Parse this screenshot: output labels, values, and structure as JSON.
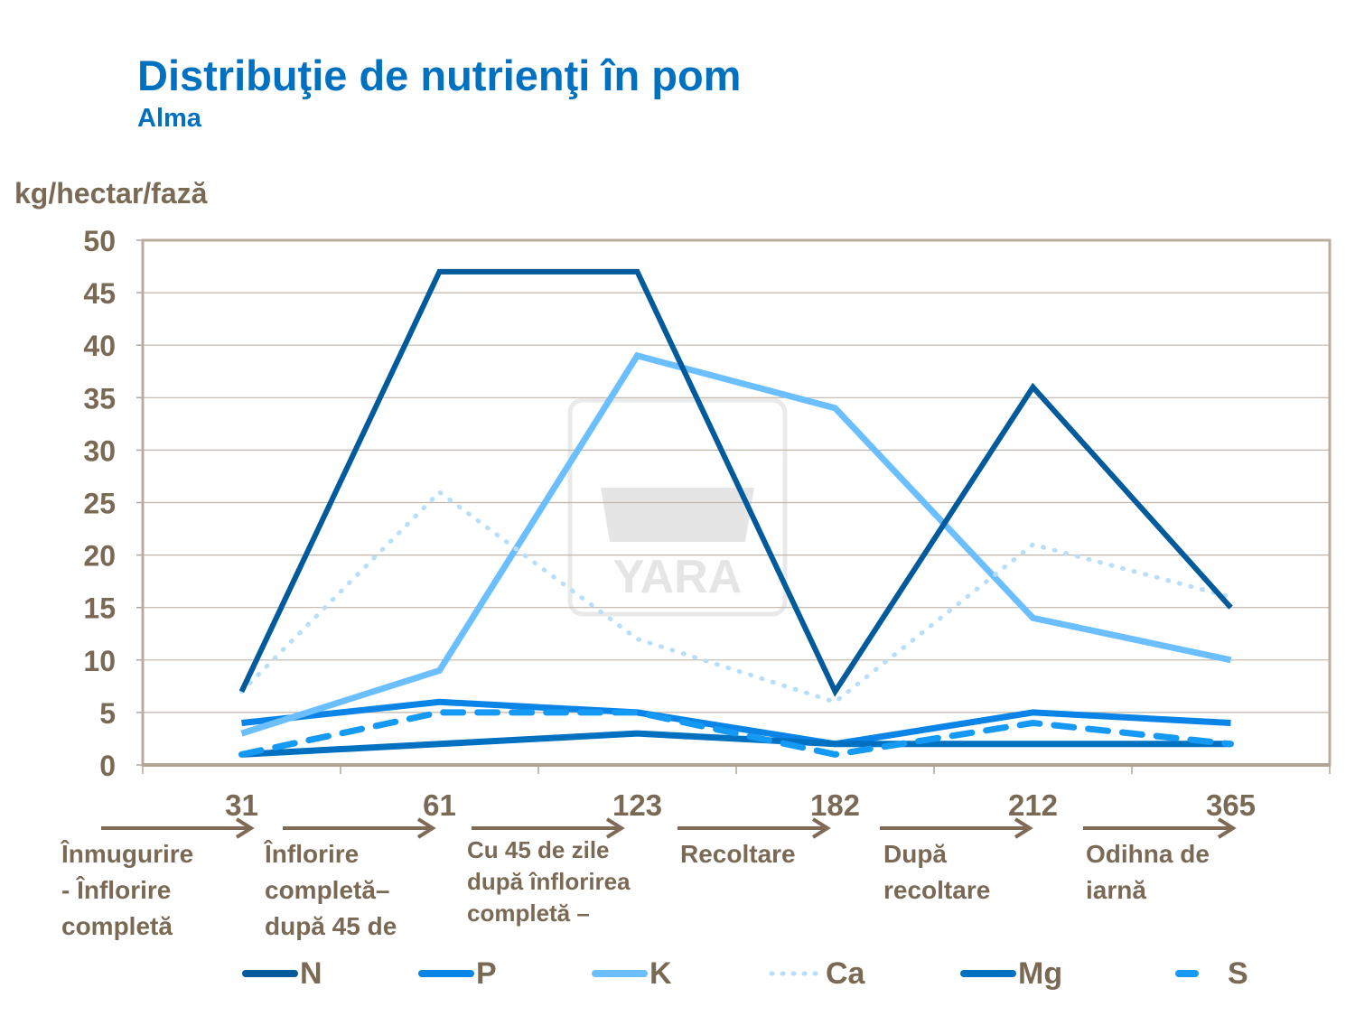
{
  "chart_data": {
    "type": "line",
    "title": "Distribuţie de nutrienţi în pom",
    "subtitle": "Alma",
    "ylabel": "kg/hectar/fază",
    "xlabel": "",
    "ylim": [
      0,
      50
    ],
    "yticks": [
      0,
      5,
      10,
      15,
      20,
      25,
      30,
      35,
      40,
      45,
      50
    ],
    "categories": [
      "31",
      "61",
      "123",
      "182",
      "212",
      "365"
    ],
    "phases": [
      [
        "Înmugurire",
        "- Înflorire",
        "completă"
      ],
      [
        "Înflorire",
        "completă–",
        "după 45 de"
      ],
      [
        "Cu 45 de zile",
        "după înflorirea",
        "completă –"
      ],
      [
        "Recoltare"
      ],
      [
        "După",
        "recoltare"
      ],
      [
        "Odihna  de",
        "iarnă"
      ]
    ],
    "grid": "horizontal",
    "legend": "bottom",
    "watermark": "YARA",
    "series": [
      {
        "name": "N",
        "values": [
          7,
          47,
          47,
          7,
          36,
          15
        ],
        "color": "#005A9C",
        "style": "solid"
      },
      {
        "name": "P",
        "values": [
          4,
          6,
          5,
          2,
          5,
          4
        ],
        "color": "#0A84E6",
        "style": "solid"
      },
      {
        "name": "K",
        "values": [
          3,
          9,
          39,
          34,
          14,
          10
        ],
        "color": "#6CBFFF",
        "style": "solid"
      },
      {
        "name": "Ca",
        "values": [
          7,
          26,
          12,
          6,
          21,
          16
        ],
        "color": "#B8DEFA",
        "style": "dotted"
      },
      {
        "name": "Mg",
        "values": [
          1,
          2,
          3,
          2,
          2,
          2
        ],
        "color": "#0070C0",
        "style": "solid"
      },
      {
        "name": "S",
        "values": [
          1,
          5,
          5,
          1,
          4,
          2
        ],
        "color": "#1499F5",
        "style": "dashed"
      }
    ]
  }
}
